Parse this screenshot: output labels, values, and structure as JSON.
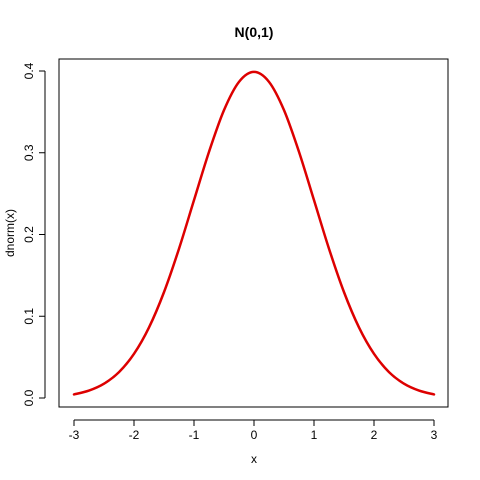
{
  "chart_data": {
    "type": "line",
    "title": "N(0,1)",
    "xlabel": "x",
    "ylabel": "dnorm(x)",
    "xlim": [
      -3,
      3
    ],
    "ylim": [
      0,
      0.4
    ],
    "x_ticks": [
      -3,
      -2,
      -1,
      0,
      1,
      2,
      3
    ],
    "x_tick_labels": [
      "-3",
      "-2",
      "-1",
      "0",
      "1",
      "2",
      "3"
    ],
    "y_ticks": [
      0.0,
      0.1,
      0.2,
      0.3,
      0.4
    ],
    "y_tick_labels": [
      "0.0",
      "0.1",
      "0.2",
      "0.3",
      "0.4"
    ],
    "grid": false,
    "series": [
      {
        "color": "#dd0000",
        "x": [
          -3.0,
          -2.75,
          -2.5,
          -2.25,
          -2.0,
          -1.75,
          -1.5,
          -1.25,
          -1.0,
          -0.75,
          -0.5,
          -0.25,
          0.0,
          0.25,
          0.5,
          0.75,
          1.0,
          1.25,
          1.5,
          1.75,
          2.0,
          2.25,
          2.5,
          2.75,
          3.0
        ],
        "y": [
          0.0044,
          0.0091,
          0.0175,
          0.0317,
          0.054,
          0.0863,
          0.1295,
          0.1826,
          0.242,
          0.3011,
          0.3521,
          0.3867,
          0.3989,
          0.3867,
          0.3521,
          0.3011,
          0.242,
          0.1826,
          0.1295,
          0.0863,
          0.054,
          0.0317,
          0.0175,
          0.0091,
          0.0044
        ]
      }
    ]
  }
}
